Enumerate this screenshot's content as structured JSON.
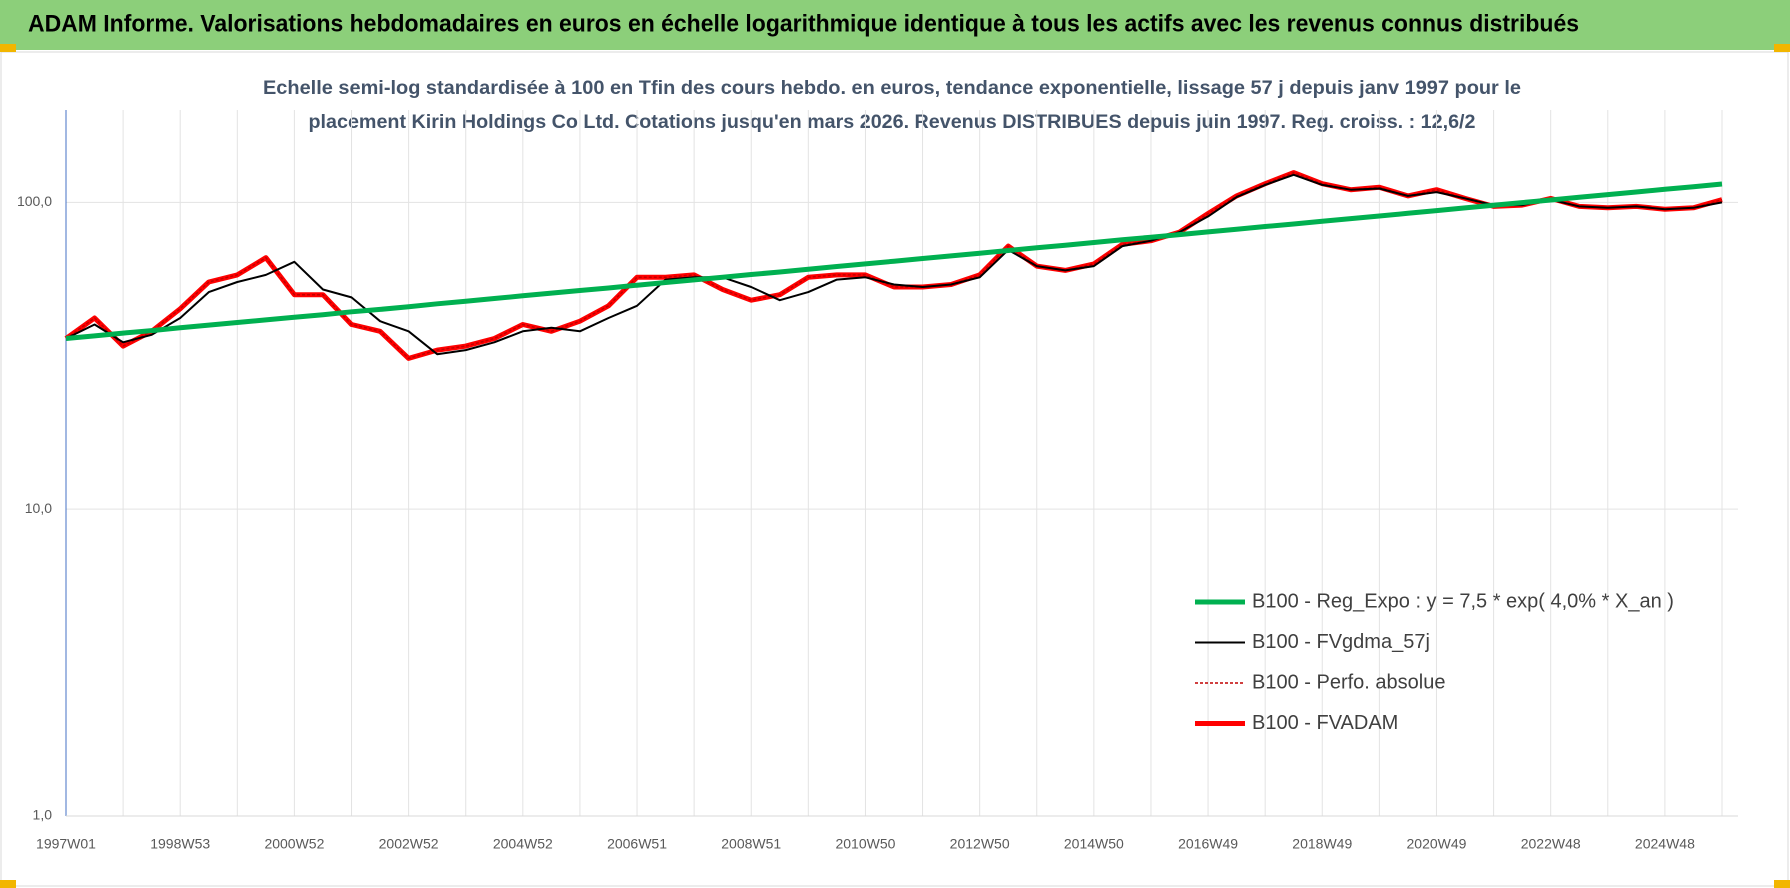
{
  "chart_data": {
    "type": "line",
    "title": "ADAM Informe. Valorisations hebdomadaires en euros en échelle logarithmique identique à tous les actifs avec les revenus connus distribués",
    "subtitle": [
      "Echelle semi-log standardisée à 100 en Tfin des cours hebdo. en euros, tendance exponentielle, lissage 57 j depuis janv 1997 pour le",
      "placement Kirin Holdings Co Ltd. Cotations jusqu'en mars 2026. Revenus DISTRIBUES depuis juin 1997.  Reg. croiss. : 12,6/2"
    ],
    "categories": [
      "1997W01",
      null,
      null,
      null,
      "1998W53",
      null,
      null,
      null,
      "2000W52",
      null,
      null,
      null,
      "2002W52",
      null,
      null,
      null,
      "2004W52",
      null,
      null,
      null,
      "2006W51",
      null,
      null,
      null,
      "2008W51",
      null,
      null,
      null,
      "2010W50",
      null,
      null,
      null,
      "2012W50",
      null,
      null,
      null,
      "2014W50",
      null,
      null,
      null,
      "2016W49",
      null,
      null,
      null,
      "2018W49",
      null,
      null,
      null,
      "2020W49",
      null,
      null,
      null,
      "2022W48",
      null,
      null,
      null,
      "2024W48",
      null,
      null
    ],
    "series": [
      {
        "name": "B100 - Reg_Expo : y = 7,5 * exp( 4,0% *  X_an )",
        "color": "#00b050",
        "width": 5,
        "dash": null,
        "values": [
          36.0,
          36.7,
          37.5,
          38.2,
          39.0,
          39.8,
          40.6,
          41.4,
          42.2,
          43.0,
          44.0,
          44.8,
          45.7,
          46.7,
          47.6,
          48.6,
          49.6,
          50.6,
          51.6,
          52.6,
          53.7,
          54.8,
          55.9,
          57.0,
          58.2,
          59.3,
          60.5,
          61.8,
          63.0,
          64.3,
          65.6,
          66.9,
          68.3,
          69.7,
          71.1,
          72.5,
          74.0,
          75.5,
          77.0,
          78.5,
          80.1,
          81.7,
          83.4,
          85.0,
          86.8,
          88.5,
          90.3,
          92.1,
          94.0,
          95.9,
          97.8,
          99.8,
          101.8,
          103.9,
          106.0,
          108.1,
          110.3,
          112.5,
          114.8
        ]
      },
      {
        "name": "B100 - FVgdma_57j",
        "color": "#000000",
        "width": 2,
        "dash": null,
        "values": [
          36,
          40,
          35,
          37,
          42,
          51,
          55,
          58,
          64,
          52,
          49,
          41,
          38,
          32,
          33,
          35,
          38,
          39,
          38,
          42,
          46,
          56,
          57,
          57,
          53,
          48,
          51,
          56,
          57,
          54,
          53,
          54,
          57,
          70,
          62,
          60,
          62,
          72,
          75,
          80,
          90,
          104,
          114,
          123,
          114,
          110,
          111,
          105,
          108,
          103,
          98,
          98,
          102,
          97,
          96,
          97,
          95,
          96,
          100
        ]
      },
      {
        "name": "B100 - Perfo. absolue",
        "color": "#c00000",
        "width": 1.5,
        "dash": "3 2",
        "values": [
          36,
          42,
          34,
          38,
          45,
          55,
          58,
          66,
          50,
          50,
          40,
          38,
          31,
          33,
          34,
          36,
          40,
          38,
          41,
          46,
          57,
          57,
          58,
          52,
          48,
          50,
          57,
          58,
          58,
          53,
          53,
          54,
          58,
          72,
          62,
          60,
          63,
          73,
          75,
          80,
          92,
          105,
          115,
          125,
          115,
          110,
          112,
          105,
          110,
          103,
          97,
          98,
          103,
          97,
          96,
          97,
          95,
          96,
          102
        ]
      },
      {
        "name": "B100 - FVADAM",
        "color": "#ff0000",
        "width": 5,
        "dash": null,
        "values": [
          36,
          42,
          34,
          38,
          45,
          55,
          58,
          66,
          50,
          50,
          40,
          38,
          31,
          33,
          34,
          36,
          40,
          38,
          41,
          46,
          57,
          57,
          58,
          52,
          48,
          50,
          57,
          58,
          58,
          53,
          53,
          54,
          58,
          72,
          62,
          60,
          63,
          73,
          75,
          80,
          92,
          105,
          115,
          125,
          115,
          110,
          112,
          105,
          110,
          103,
          97,
          98,
          103,
          97,
          96,
          97,
          95,
          96,
          102
        ]
      }
    ],
    "log_y": true,
    "ylim": [
      1,
      200
    ],
    "yticks": [
      {
        "value": 1,
        "label": "1,0"
      },
      {
        "value": 10,
        "label": "10,0"
      },
      {
        "value": 100,
        "label": "100,0"
      }
    ],
    "grid": true,
    "legend": "lower right"
  }
}
